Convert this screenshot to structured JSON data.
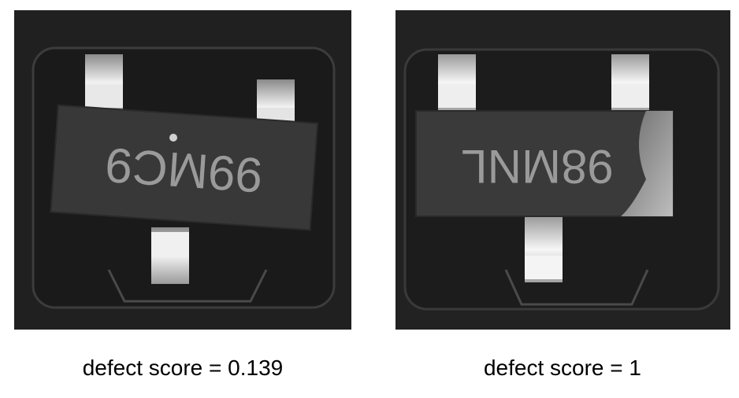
{
  "panels": [
    {
      "label": "defect score = 0.139",
      "marking": "99MC9"
    },
    {
      "label": "defect score = 1",
      "marking": "98MNL"
    }
  ],
  "colors": {
    "background": "#ffffff",
    "photo_dark": "#232323",
    "chip_body": "#3a3a3a",
    "marking_text": "#9a9a9a",
    "lead_metal": "#d8d8d8"
  }
}
